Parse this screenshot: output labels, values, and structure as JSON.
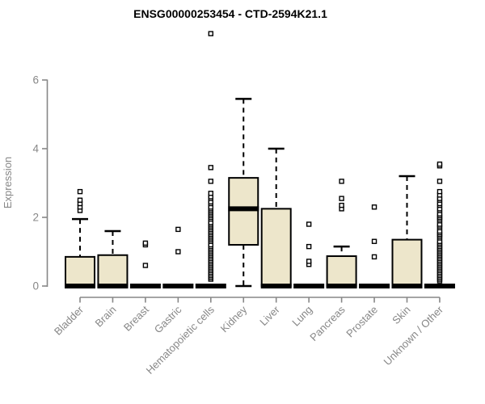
{
  "title": "ENSG00000253454 - CTD-2594K21.1",
  "chart_data": {
    "type": "boxplot",
    "title": "ENSG00000253454 - CTD-2594K21.1",
    "xlabel": "",
    "ylabel": "Expression",
    "ylim": [
      0,
      6
    ],
    "yticks": [
      0,
      2,
      4,
      6
    ],
    "grid": false,
    "legend": "none",
    "categories": [
      "Bladder",
      "Brain",
      "Breast",
      "Gastric",
      "Hematopoietic cells",
      "Kidney",
      "Liver",
      "Lung",
      "Pancreas",
      "Prostate",
      "Skin",
      "Unknown / Other"
    ],
    "series": [
      {
        "name": "Bladder",
        "whisker_low": 0,
        "q1": 0,
        "median": 0,
        "q3": 0.85,
        "whisker_high": 1.95,
        "outliers": [
          2.2,
          2.3,
          2.4,
          2.5,
          2.75
        ]
      },
      {
        "name": "Brain",
        "whisker_low": 0,
        "q1": 0,
        "median": 0,
        "q3": 0.9,
        "whisker_high": 1.6,
        "outliers": []
      },
      {
        "name": "Breast",
        "whisker_low": 0,
        "q1": 0,
        "median": 0,
        "q3": 0,
        "whisker_high": 0,
        "outliers": [
          0.6,
          1.2,
          1.25
        ]
      },
      {
        "name": "Gastric",
        "whisker_low": 0,
        "q1": 0,
        "median": 0,
        "q3": 0,
        "whisker_high": 0,
        "outliers": [
          1.0,
          1.65
        ]
      },
      {
        "name": "Hematopoietic cells",
        "whisker_low": 0,
        "q1": 0,
        "median": 0,
        "q3": 0,
        "whisker_high": 0,
        "outliers": [
          0.2,
          0.25,
          0.3,
          0.35,
          0.4,
          0.45,
          0.5,
          0.55,
          0.6,
          0.65,
          0.7,
          0.75,
          0.8,
          0.85,
          0.9,
          0.95,
          1.0,
          1.05,
          1.1,
          1.15,
          1.2,
          1.3,
          1.35,
          1.4,
          1.45,
          1.5,
          1.55,
          1.6,
          1.65,
          1.7,
          1.75,
          1.8,
          1.85,
          1.95,
          2.0,
          2.05,
          2.1,
          2.15,
          2.2,
          2.25,
          2.3,
          2.4,
          2.45,
          2.55,
          2.6,
          2.7,
          3.05,
          3.45,
          7.35
        ]
      },
      {
        "name": "Kidney",
        "whisker_low": 0,
        "q1": 1.2,
        "median": 2.25,
        "q3": 3.15,
        "whisker_high": 5.45,
        "outliers": []
      },
      {
        "name": "Liver",
        "whisker_low": 0,
        "q1": 0,
        "median": 0,
        "q3": 2.25,
        "whisker_high": 4.0,
        "outliers": []
      },
      {
        "name": "Lung",
        "whisker_low": 0,
        "q1": 0,
        "median": 0,
        "q3": 0,
        "whisker_high": 0,
        "outliers": [
          0.63,
          0.72,
          1.15,
          1.8
        ]
      },
      {
        "name": "Pancreas",
        "whisker_low": 0,
        "q1": 0,
        "median": 0,
        "q3": 0.87,
        "whisker_high": 1.15,
        "outliers": [
          2.25,
          2.35,
          2.55,
          3.05
        ]
      },
      {
        "name": "Prostate",
        "whisker_low": 0,
        "q1": 0,
        "median": 0,
        "q3": 0,
        "whisker_high": 0,
        "outliers": [
          0.85,
          1.3,
          2.3
        ]
      },
      {
        "name": "Skin",
        "whisker_low": 0,
        "q1": 0,
        "median": 0,
        "q3": 1.35,
        "whisker_high": 3.2,
        "outliers": []
      },
      {
        "name": "Unknown / Other",
        "whisker_low": 0,
        "q1": 0,
        "median": 0,
        "q3": 0,
        "whisker_high": 0,
        "outliers": [
          0.15,
          0.2,
          0.25,
          0.3,
          0.35,
          0.4,
          0.45,
          0.5,
          0.55,
          0.6,
          0.65,
          0.7,
          0.75,
          0.8,
          0.85,
          0.9,
          0.95,
          1.0,
          1.05,
          1.1,
          1.15,
          1.2,
          1.25,
          1.3,
          1.4,
          1.45,
          1.5,
          1.55,
          1.6,
          1.7,
          1.75,
          1.8,
          1.9,
          1.95,
          2.0,
          2.05,
          2.1,
          2.2,
          2.25,
          2.35,
          2.4,
          2.5,
          2.55,
          2.65,
          2.75,
          3.05,
          3.5,
          3.55
        ]
      }
    ],
    "colors": {
      "box_fill": "#EDE6CB",
      "box_stroke": "#000000",
      "median": "#000000",
      "outlier_stroke": "#000000",
      "outlier_fill": "#ffffff",
      "axis": "#878787",
      "tick_label": "#878787",
      "title": "#000000",
      "background": "#ffffff"
    }
  }
}
